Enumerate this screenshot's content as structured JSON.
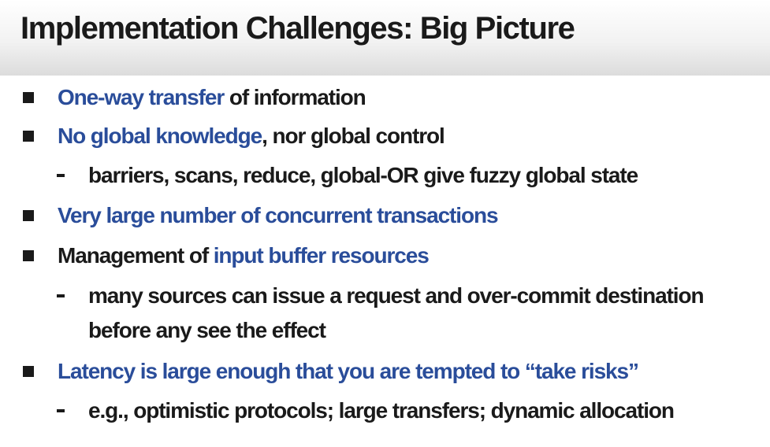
{
  "slide": {
    "title": "Implementation Challenges: Big Picture",
    "colors": {
      "text": "#1a1a1a",
      "highlight": "#2a4d9a"
    },
    "items": [
      {
        "level": 1,
        "segments": [
          {
            "text": "One-way transfer",
            "style": "highlight"
          },
          {
            "text": " of information",
            "style": "normal"
          }
        ]
      },
      {
        "level": 1,
        "segments": [
          {
            "text": "No global knowledge",
            "style": "highlight"
          },
          {
            "text": ", nor global control",
            "style": "normal"
          }
        ]
      },
      {
        "level": 2,
        "segments": [
          {
            "text": "barriers, scans, reduce, global-OR give fuzzy global state",
            "style": "normal"
          }
        ]
      },
      {
        "level": 1,
        "segments": [
          {
            "text": "Very large number of concurrent transactions",
            "style": "highlight"
          }
        ]
      },
      {
        "level": 1,
        "segments": [
          {
            "text": "Management of ",
            "style": "normal"
          },
          {
            "text": "input buffer resources",
            "style": "highlight"
          }
        ]
      },
      {
        "level": 2,
        "segments": [
          {
            "text": "many sources can issue a request and over-commit destination",
            "style": "normal"
          }
        ]
      },
      {
        "level": 2,
        "continuation": true,
        "segments": [
          {
            "text": "before any see the effect",
            "style": "normal"
          }
        ]
      },
      {
        "level": 1,
        "segments": [
          {
            "text": "Latency is large enough that you are tempted to “take risks”",
            "style": "highlight"
          }
        ]
      },
      {
        "level": 2,
        "segments": [
          {
            "text": "e.g., optimistic protocols; large transfers; dynamic allocation",
            "style": "normal"
          }
        ]
      }
    ]
  }
}
